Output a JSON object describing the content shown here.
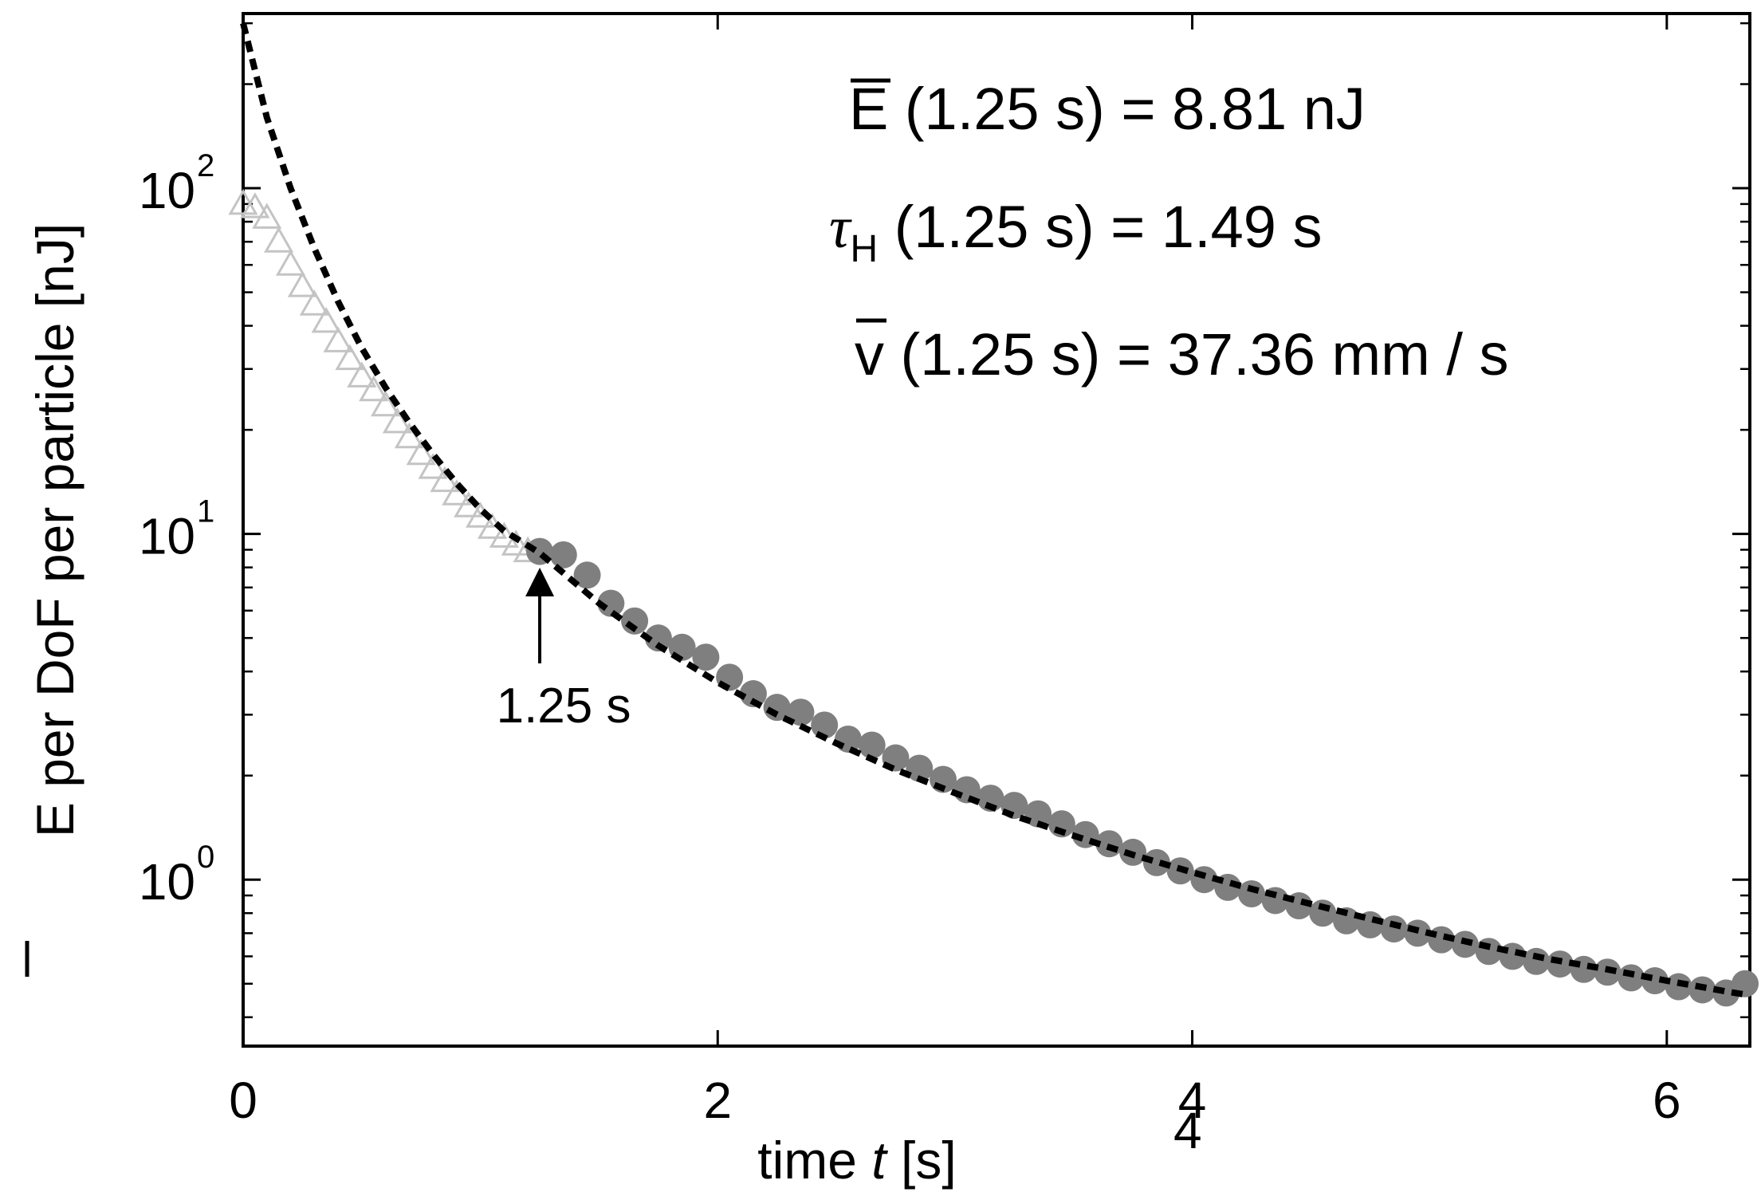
{
  "chart_data": {
    "type": "scatter",
    "xlabel_prefix": "time ",
    "xlabel_var": "t",
    "xlabel_suffix": " [s]",
    "xlabel_stray": "4",
    "ylabel_symbol": "E",
    "ylabel_rest": " per DoF per particle [nJ]",
    "xlim": [
      0,
      6.35
    ],
    "ylim": [
      0.33,
      320
    ],
    "yscale": "log",
    "x_ticks": [
      {
        "value": 0,
        "label": "0"
      },
      {
        "value": 2,
        "label": "2"
      },
      {
        "value": 4,
        "label": "4"
      },
      {
        "value": 6,
        "label": "6"
      }
    ],
    "y_ticks": [
      {
        "value": 1,
        "base": "10",
        "exp": "0"
      },
      {
        "value": 10,
        "base": "10",
        "exp": "1"
      },
      {
        "value": 100,
        "base": "10",
        "exp": "2"
      }
    ],
    "series": [
      {
        "marker": "triangle",
        "color": "#c4c4c4",
        "x": [
          0.0,
          0.05,
          0.1,
          0.15,
          0.2,
          0.25,
          0.3,
          0.35,
          0.4,
          0.45,
          0.5,
          0.55,
          0.6,
          0.65,
          0.7,
          0.75,
          0.8,
          0.85,
          0.9,
          0.95,
          1.0,
          1.05,
          1.1,
          1.15,
          1.2
        ],
        "y": [
          90,
          88,
          82,
          70,
          60,
          52,
          46,
          41,
          36,
          32,
          28.5,
          26,
          23.5,
          21,
          19,
          17,
          15.5,
          14.2,
          13.0,
          12.0,
          11.2,
          10.4,
          9.8,
          9.3,
          8.9
        ]
      },
      {
        "marker": "circle",
        "color": "#7f7f7f",
        "x": [
          1.25,
          1.35,
          1.45,
          1.55,
          1.65,
          1.75,
          1.85,
          1.95,
          2.05,
          2.15,
          2.25,
          2.35,
          2.45,
          2.55,
          2.65,
          2.75,
          2.85,
          2.95,
          3.05,
          3.15,
          3.25,
          3.35,
          3.45,
          3.55,
          3.65,
          3.75,
          3.85,
          3.95,
          4.05,
          4.15,
          4.25,
          4.35,
          4.45,
          4.55,
          4.65,
          4.75,
          4.85,
          4.95,
          5.05,
          5.15,
          5.25,
          5.35,
          5.45,
          5.55,
          5.65,
          5.75,
          5.85,
          5.95,
          6.05,
          6.15,
          6.25,
          6.33
        ],
        "y": [
          8.9,
          8.7,
          7.6,
          6.3,
          5.6,
          5.0,
          4.7,
          4.4,
          3.85,
          3.45,
          3.15,
          3.05,
          2.8,
          2.55,
          2.45,
          2.25,
          2.1,
          1.95,
          1.82,
          1.72,
          1.64,
          1.55,
          1.45,
          1.35,
          1.27,
          1.2,
          1.12,
          1.06,
          1.0,
          0.95,
          0.91,
          0.87,
          0.84,
          0.8,
          0.76,
          0.74,
          0.72,
          0.7,
          0.67,
          0.65,
          0.62,
          0.6,
          0.58,
          0.57,
          0.55,
          0.54,
          0.52,
          0.51,
          0.49,
          0.48,
          0.47,
          0.5
        ]
      },
      {
        "marker": "dashed-line",
        "color": "#000000",
        "x": [
          0.0,
          0.1,
          0.2,
          0.3,
          0.4,
          0.5,
          0.6,
          0.7,
          0.8,
          0.9,
          1.0,
          1.1,
          1.25,
          1.5,
          1.75,
          2.0,
          2.25,
          2.5,
          2.75,
          3.0,
          3.25,
          3.5,
          3.75,
          4.0,
          4.25,
          4.5,
          4.75,
          5.0,
          5.25,
          5.5,
          5.75,
          6.0,
          6.25,
          6.33
        ],
        "y": [
          300,
          160,
          100,
          67,
          47,
          34.5,
          26.5,
          21,
          17,
          14,
          11.8,
          10.2,
          8.81,
          6.3,
          4.75,
          3.72,
          3.0,
          2.48,
          2.08,
          1.78,
          1.53,
          1.34,
          1.18,
          1.05,
          0.94,
          0.85,
          0.77,
          0.7,
          0.64,
          0.59,
          0.55,
          0.51,
          0.475,
          0.465
        ]
      }
    ],
    "arrow": {
      "x": 1.25,
      "label": "1.25 s"
    },
    "annotations": [
      {
        "symbol": "E",
        "rest": " (1.25 s) = 8.81 nJ"
      },
      {
        "symbol": "τ",
        "sub": "H",
        "rest": " (1.25 s) = 1.49 s"
      },
      {
        "symbol": "v",
        "rest": " (1.25 s) = 37.36 mm / s"
      }
    ]
  }
}
